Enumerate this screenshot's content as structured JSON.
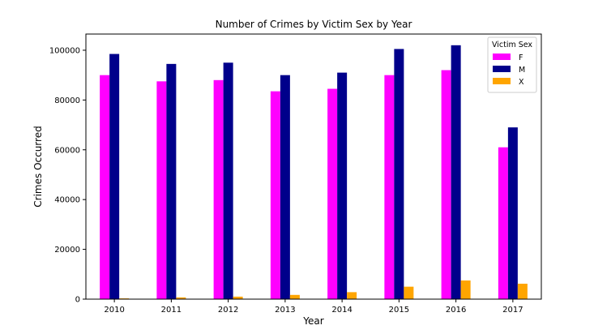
{
  "chart_data": {
    "type": "bar",
    "title": "Number of Crimes by Victim Sex by Year",
    "xlabel": "Year",
    "ylabel": "Crimes Occurred",
    "categories": [
      "2010",
      "2011",
      "2012",
      "2013",
      "2014",
      "2015",
      "2016",
      "2017"
    ],
    "ylim": [
      0,
      106500
    ],
    "yticks": [
      0,
      20000,
      40000,
      60000,
      80000,
      100000
    ],
    "ytick_labels": [
      "0",
      "20000",
      "40000",
      "60000",
      "80000",
      "100000"
    ],
    "series": [
      {
        "name": "F",
        "color": "#ff00ff",
        "values": [
          90000,
          87500,
          88000,
          83500,
          84500,
          90000,
          92000,
          61000
        ]
      },
      {
        "name": "M",
        "color": "#00008b",
        "values": [
          98500,
          94500,
          95000,
          90000,
          91000,
          100500,
          102000,
          69000
        ]
      },
      {
        "name": "X",
        "color": "#ffa500",
        "values": [
          300,
          700,
          1000,
          1700,
          2800,
          5000,
          7500,
          6200
        ]
      }
    ],
    "legend": {
      "title": "Victim Sex",
      "position": "top-right"
    },
    "grid": false
  }
}
